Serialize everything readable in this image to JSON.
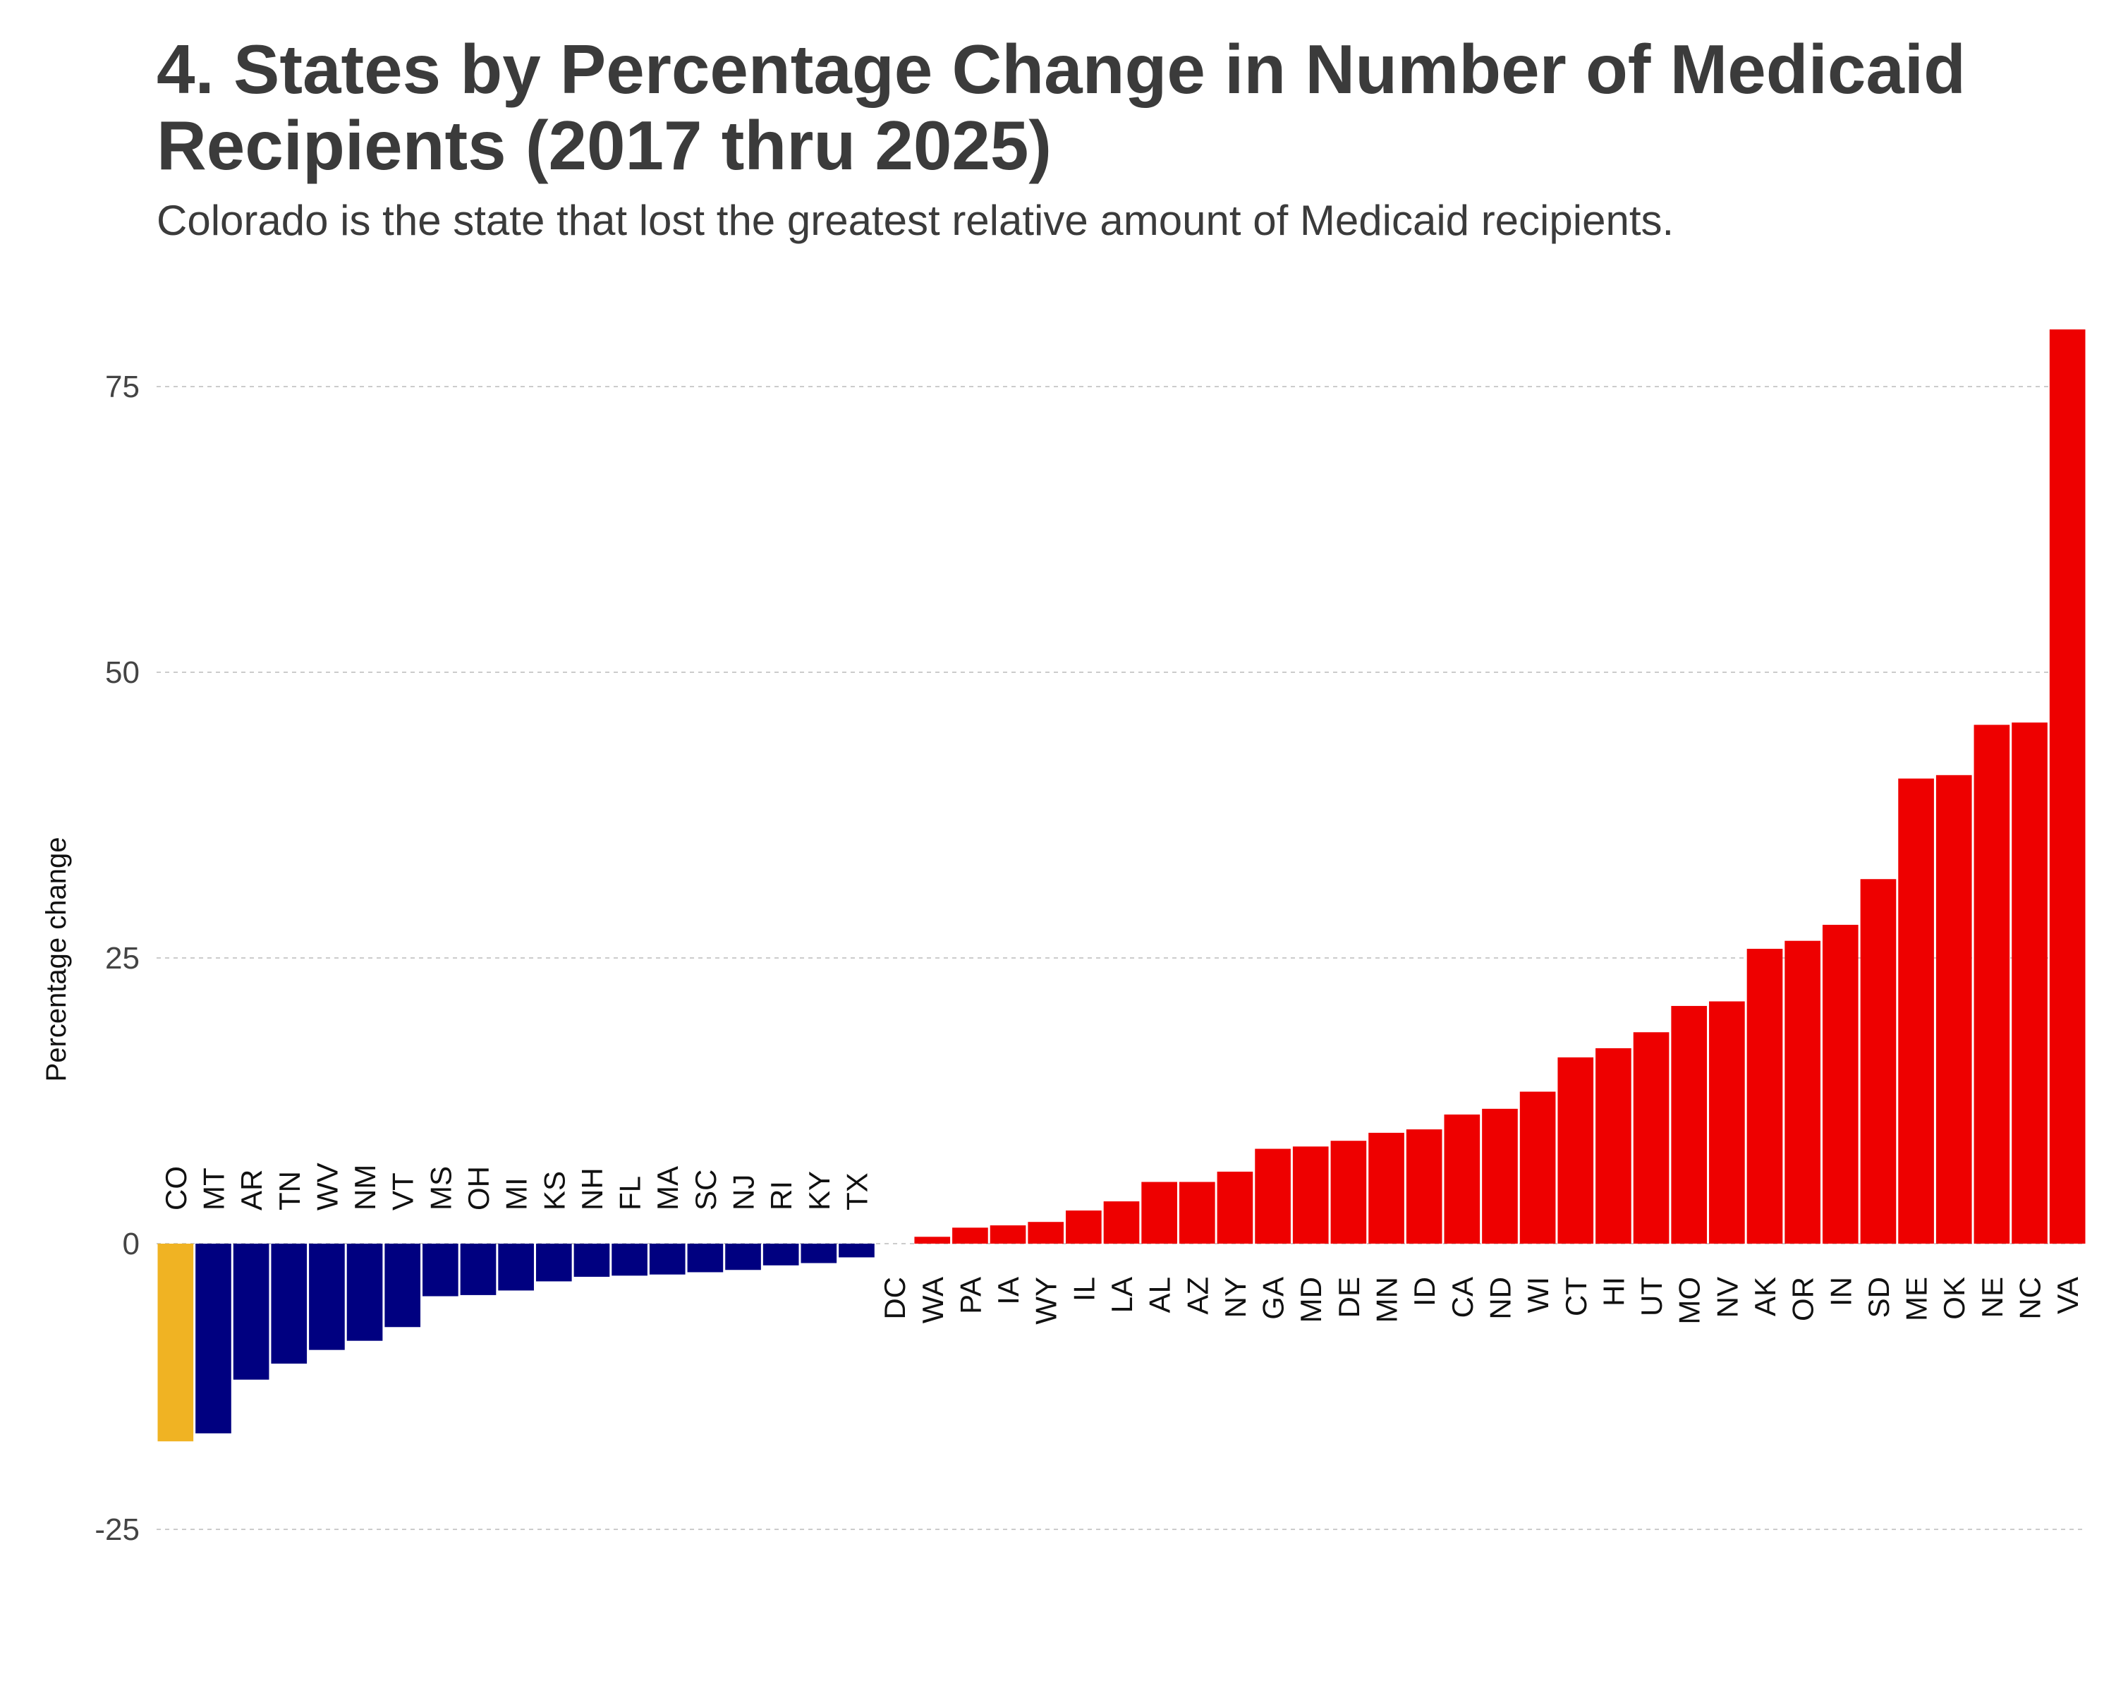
{
  "chart_data": {
    "type": "bar",
    "title": "4. States by Percentage Change in Number of Medicaid Recipients (2017 thru 2025)",
    "subtitle": "Colorado is the state that lost the greatest relative amount of Medicaid recipients.",
    "xlabel": "",
    "ylabel": "Percentage change",
    "ylim": [
      -29,
      80
    ],
    "yticks": [
      -25,
      0,
      25,
      50,
      75
    ],
    "ytick_labels": [
      "-25",
      "0",
      "25",
      "50",
      "75"
    ],
    "grid": true,
    "legend": "none",
    "colors": {
      "highlight": "#f0b323",
      "negative": "#000080",
      "positive": "#ee0000",
      "grid": "#cccccc"
    },
    "highlight_category": "CO",
    "categories": [
      "CO",
      "MT",
      "AR",
      "TN",
      "WV",
      "NM",
      "VT",
      "MS",
      "OH",
      "MI",
      "KS",
      "NH",
      "FL",
      "MA",
      "SC",
      "NJ",
      "RI",
      "KY",
      "TX",
      "DC",
      "WA",
      "PA",
      "IA",
      "WY",
      "IL",
      "LA",
      "AL",
      "AZ",
      "NY",
      "GA",
      "MD",
      "DE",
      "MN",
      "ID",
      "CA",
      "ND",
      "WI",
      "CT",
      "HI",
      "UT",
      "MO",
      "NV",
      "AK",
      "OR",
      "IN",
      "SD",
      "ME",
      "OK",
      "NE",
      "NC",
      "VA"
    ],
    "values": [
      -17.3,
      -16.6,
      -11.9,
      -10.5,
      -9.3,
      -8.5,
      -7.3,
      -4.6,
      -4.5,
      -4.1,
      -3.3,
      -2.9,
      -2.8,
      -2.7,
      -2.5,
      -2.3,
      -1.9,
      -1.7,
      -1.2,
      0,
      0.6,
      1.4,
      1.6,
      1.9,
      2.9,
      3.7,
      5.4,
      5.4,
      6.3,
      8.3,
      8.5,
      9.0,
      9.7,
      10.0,
      11.3,
      11.8,
      13.3,
      16.3,
      17.1,
      18.5,
      20.8,
      21.2,
      25.8,
      26.5,
      27.9,
      31.9,
      40.7,
      41.0,
      45.4,
      45.6,
      80.0
    ]
  }
}
